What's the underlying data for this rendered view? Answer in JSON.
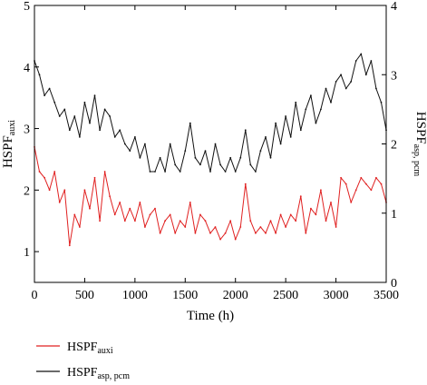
{
  "chart_data": {
    "type": "line",
    "xlabel": "Time (h)",
    "ylabel_left": {
      "main": "HSPF",
      "sub": "auxi"
    },
    "ylabel_right": {
      "main": "HSPF",
      "sub": "asp, pcm"
    },
    "xlim": [
      0,
      3500
    ],
    "ylim_left": [
      0.5,
      5
    ],
    "ylim_right": [
      0,
      4
    ],
    "x_ticks": [
      0,
      500,
      1000,
      1500,
      2000,
      2500,
      3000,
      3500
    ],
    "y_left_ticks": [
      1,
      2,
      3,
      4,
      5
    ],
    "y_right_ticks": [
      0,
      1,
      2,
      3,
      4
    ],
    "grid": false,
    "legend_placement": "bottom-left",
    "series": [
      {
        "name": {
          "main": "HSPF",
          "sub": "auxi"
        },
        "axis": "left",
        "color": "#e02020",
        "x": [
          0,
          50,
          100,
          150,
          200,
          250,
          300,
          350,
          400,
          450,
          500,
          550,
          600,
          650,
          700,
          750,
          800,
          850,
          900,
          950,
          1000,
          1050,
          1100,
          1150,
          1200,
          1250,
          1300,
          1350,
          1400,
          1450,
          1500,
          1550,
          1600,
          1650,
          1700,
          1750,
          1800,
          1850,
          1900,
          1950,
          2000,
          2050,
          2100,
          2150,
          2200,
          2250,
          2300,
          2350,
          2400,
          2450,
          2500,
          2550,
          2600,
          2650,
          2700,
          2750,
          2800,
          2850,
          2900,
          2950,
          3000,
          3050,
          3100,
          3150,
          3200,
          3250,
          3300,
          3350,
          3400,
          3450,
          3500
        ],
        "values": [
          2.7,
          2.3,
          2.2,
          2.0,
          2.3,
          1.8,
          2.0,
          1.1,
          1.6,
          1.4,
          2.0,
          1.7,
          2.2,
          1.5,
          2.3,
          1.9,
          1.6,
          1.8,
          1.5,
          1.7,
          1.5,
          1.8,
          1.4,
          1.6,
          1.7,
          1.3,
          1.5,
          1.6,
          1.3,
          1.5,
          1.4,
          1.8,
          1.3,
          1.6,
          1.5,
          1.3,
          1.4,
          1.2,
          1.3,
          1.5,
          1.2,
          1.4,
          2.1,
          1.5,
          1.3,
          1.4,
          1.3,
          1.5,
          1.3,
          1.6,
          1.4,
          1.6,
          1.5,
          1.9,
          1.3,
          1.7,
          1.6,
          2.0,
          1.5,
          1.8,
          1.4,
          2.2,
          2.1,
          1.8,
          2.0,
          2.2,
          2.1,
          2.0,
          2.2,
          2.1,
          1.8
        ]
      },
      {
        "name": {
          "main": "HSPF",
          "sub": "asp, pcm"
        },
        "axis": "right",
        "color": "#111111",
        "x": [
          0,
          50,
          100,
          150,
          200,
          250,
          300,
          350,
          400,
          450,
          500,
          550,
          600,
          650,
          700,
          750,
          800,
          850,
          900,
          950,
          1000,
          1050,
          1100,
          1150,
          1200,
          1250,
          1300,
          1350,
          1400,
          1450,
          1500,
          1550,
          1600,
          1650,
          1700,
          1750,
          1800,
          1850,
          1900,
          1950,
          2000,
          2050,
          2100,
          2150,
          2200,
          2250,
          2300,
          2350,
          2400,
          2450,
          2500,
          2550,
          2600,
          2650,
          2700,
          2750,
          2800,
          2850,
          2900,
          2950,
          3000,
          3050,
          3100,
          3150,
          3200,
          3250,
          3300,
          3350,
          3400,
          3450,
          3500
        ],
        "values": [
          3.2,
          3.0,
          2.7,
          2.8,
          2.6,
          2.4,
          2.5,
          2.2,
          2.4,
          2.1,
          2.6,
          2.3,
          2.7,
          2.2,
          2.5,
          2.4,
          2.1,
          2.2,
          2.0,
          1.9,
          2.1,
          1.8,
          2.0,
          1.6,
          1.6,
          1.8,
          1.6,
          2.0,
          1.7,
          1.6,
          1.9,
          2.3,
          1.8,
          1.7,
          1.9,
          1.6,
          2.0,
          1.7,
          1.6,
          1.8,
          1.6,
          1.8,
          2.2,
          1.7,
          1.6,
          1.9,
          2.1,
          1.8,
          2.3,
          2.0,
          2.4,
          2.1,
          2.6,
          2.2,
          2.5,
          2.7,
          2.3,
          2.5,
          2.8,
          2.6,
          2.9,
          3.0,
          2.8,
          2.9,
          3.2,
          3.3,
          3.0,
          3.2,
          2.8,
          2.6,
          2.2
        ]
      }
    ]
  }
}
